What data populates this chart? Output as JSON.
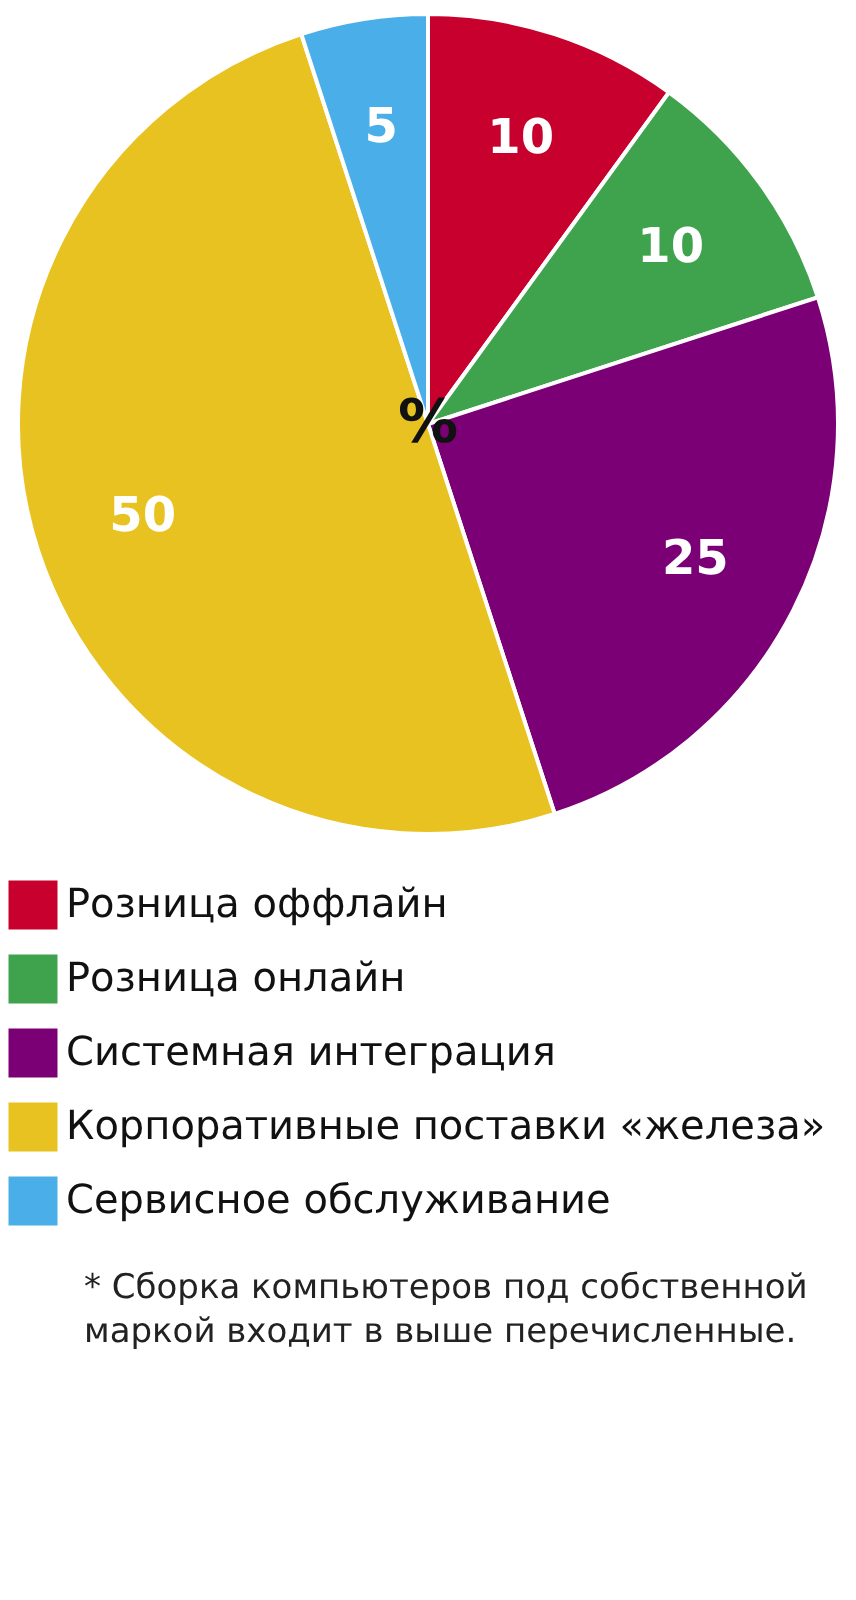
{
  "chart_data": {
    "type": "pie",
    "categories": [
      "Розница оффлайн",
      "Розница онлайн",
      "Системная интеграция",
      "Корпоративные поставки «железа»",
      "Сервисное обслуживание"
    ],
    "values": [
      10,
      10,
      25,
      50,
      5
    ],
    "colors": [
      "#c8002d",
      "#3fa34d",
      "#7b0075",
      "#e8c220",
      "#4aaee8"
    ],
    "data_labels": true,
    "legend": "bottom",
    "annotations": [
      "%",
      "* Сборка компьютеров под собственной маркой входит в выше перечисленные."
    ]
  }
}
